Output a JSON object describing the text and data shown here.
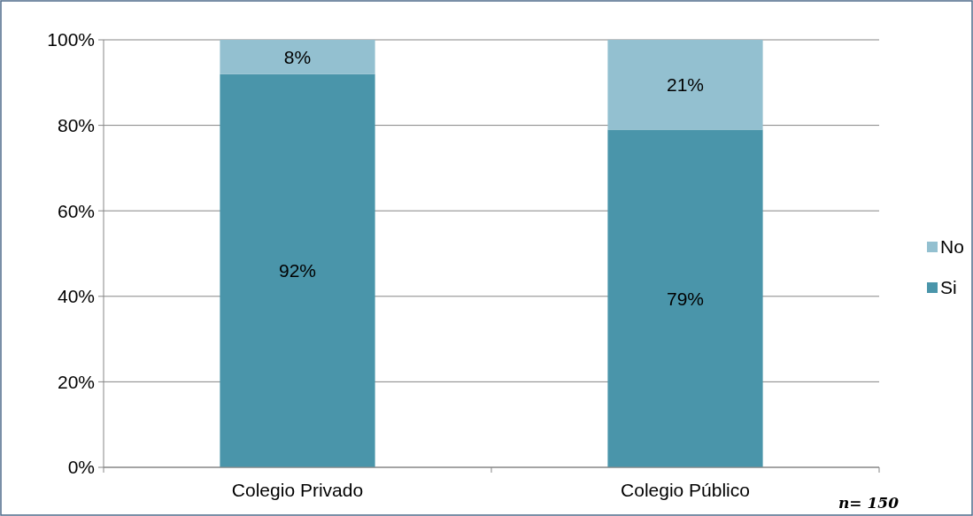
{
  "chart_data": {
    "type": "bar",
    "stacked": true,
    "categories": [
      "Colegio Privado",
      "Colegio Público"
    ],
    "series": [
      {
        "name": "Si",
        "color": "#4a95aa",
        "values": [
          92,
          79
        ],
        "value_labels": [
          "92%",
          "79%"
        ]
      },
      {
        "name": "No",
        "color": "#93c0d0",
        "values": [
          8,
          21
        ],
        "value_labels": [
          "8%",
          "21%"
        ]
      }
    ],
    "ylim": [
      0,
      100
    ],
    "yticks": [
      {
        "value": 0,
        "label": "0%"
      },
      {
        "value": 20,
        "label": "20%"
      },
      {
        "value": 40,
        "label": "40%"
      },
      {
        "value": 60,
        "label": "60%"
      },
      {
        "value": 80,
        "label": "80%"
      },
      {
        "value": 100,
        "label": "100%"
      }
    ],
    "grid": "y",
    "legend": "right",
    "annotations": [
      "n= 150"
    ]
  }
}
